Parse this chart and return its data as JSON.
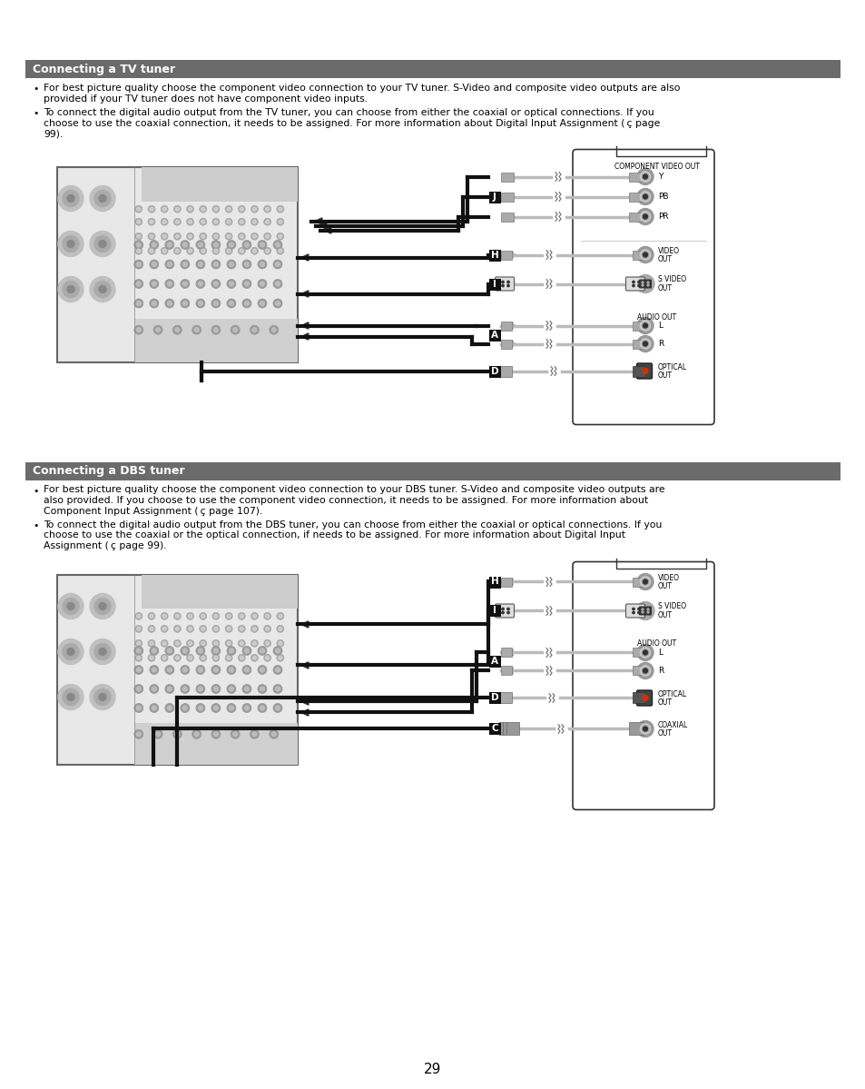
{
  "page_bg": "#ffffff",
  "page_num": "29",
  "section1_title": "Connecting a TV tuner",
  "section2_title": "Connecting a DBS tuner",
  "header_bg": "#6b6b6b",
  "header_text_color": "#ffffff",
  "header_font_size": 9,
  "body_font_size": 7.8,
  "bullet1_tv": "For best picture quality choose the component video connection to your TV tuner. S-Video and composite video outputs are also\nprovided if your TV tuner does not have component video inputs.",
  "bullet2_tv": "To connect the digital audio output from the TV tuner, you can choose from either the coaxial or optical connections. If you\nchoose to use the coaxial connection, it needs to be assigned. For more information about Digital Input Assignment ( ç page\n99).",
  "bullet1_dbs": "For best picture quality choose the component video connection to your DBS tuner. S-Video and composite video outputs are\nalso provided. If you choose to use the component video connection, it needs to be assigned. For more information about\nComponent Input Assignment ( ç page 107).",
  "bullet2_dbs": "To connect the digital audio output from the DBS tuner, you can choose from either the coaxial or optical connections. If you\nchoose to use the coaxial or the optical connection, if needs to be assigned. For more information about Digital Input\nAssignment ( ç page 99).",
  "label_bg_dark": "#111111",
  "label_text_color": "#ffffff"
}
